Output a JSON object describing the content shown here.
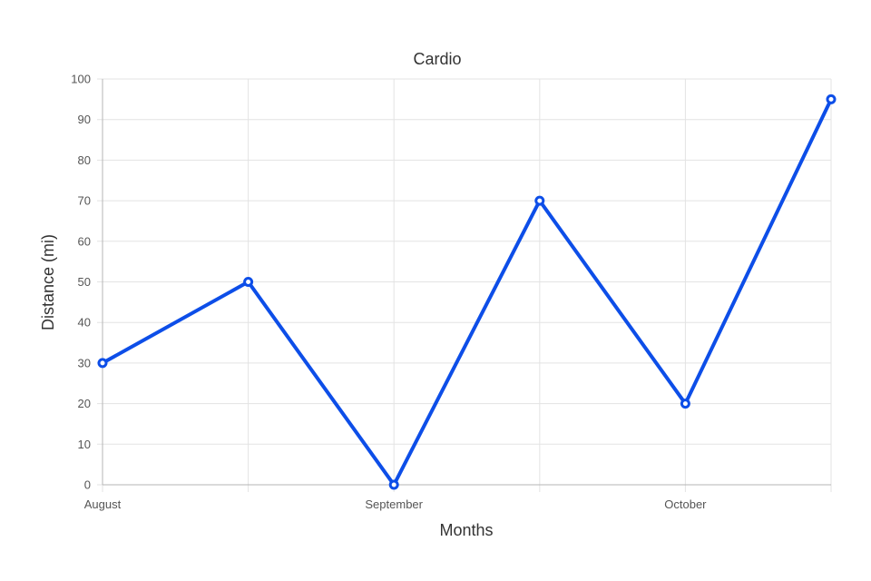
{
  "chart_data": {
    "type": "line",
    "title": "Cardio",
    "xlabel": "Months",
    "ylabel": "Distance (mi)",
    "x_tick_labels": [
      "August",
      "",
      "September",
      "",
      "October",
      ""
    ],
    "ylim": [
      0,
      100
    ],
    "y_ticks": [
      0,
      10,
      20,
      30,
      40,
      50,
      60,
      70,
      80,
      90,
      100
    ],
    "grid": true,
    "series": [
      {
        "values": [
          30,
          50,
          0,
          70,
          20,
          95
        ],
        "color": "#0d4ee8"
      }
    ]
  }
}
